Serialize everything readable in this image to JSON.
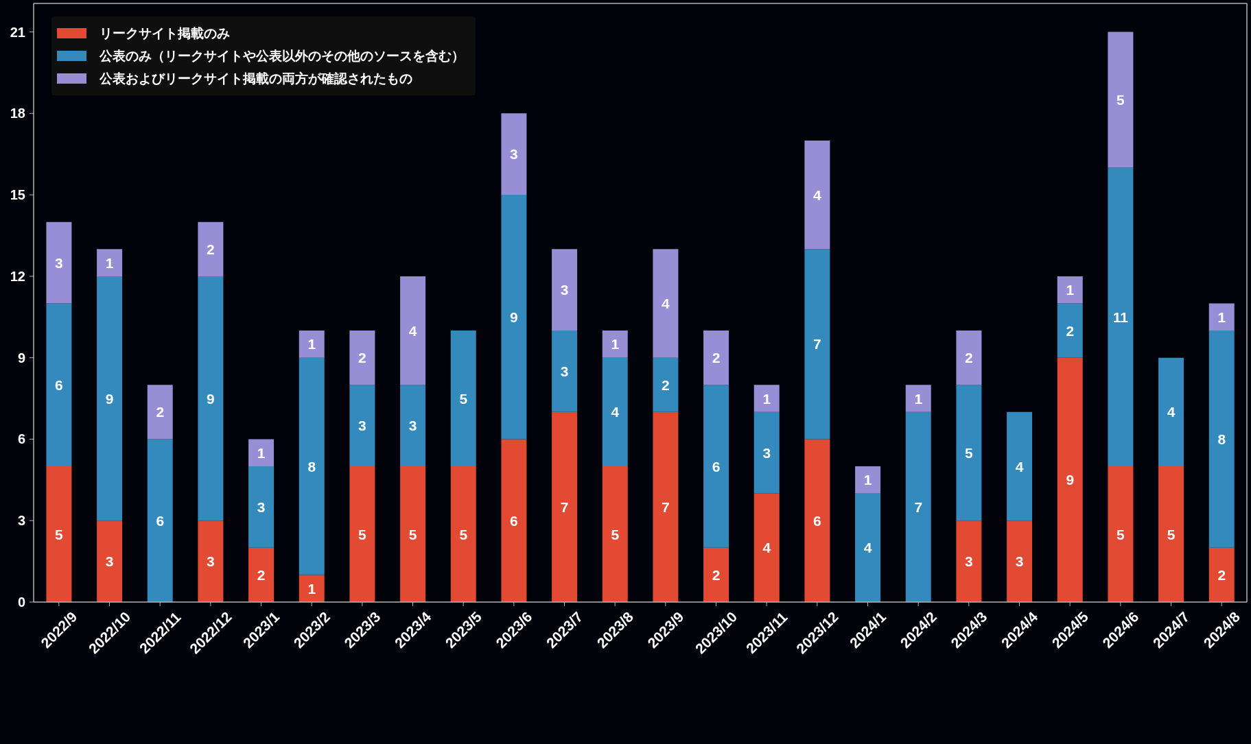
{
  "chart_data": {
    "type": "bar",
    "stacked": true,
    "categories": [
      "2022/9",
      "2022/10",
      "2022/11",
      "2022/12",
      "2023/1",
      "2023/2",
      "2023/3",
      "2023/4",
      "2023/5",
      "2023/6",
      "2023/7",
      "2023/8",
      "2023/9",
      "2023/10",
      "2023/11",
      "2023/12",
      "2024/1",
      "2024/2",
      "2024/3",
      "2024/4",
      "2024/5",
      "2024/6",
      "2024/7",
      "2024/8"
    ],
    "series": [
      {
        "name": "リークサイト掲載のみ",
        "color": "#e24a33",
        "values": [
          5,
          3,
          0,
          3,
          2,
          1,
          5,
          5,
          5,
          6,
          7,
          5,
          7,
          2,
          4,
          6,
          0,
          0,
          3,
          3,
          9,
          5,
          5,
          2
        ],
        "value_labels": [
          "5",
          "3",
          null,
          "3",
          "2",
          "1",
          "5",
          "5",
          "5",
          "6",
          "7",
          "5",
          "7",
          "2",
          "4",
          "6",
          null,
          null,
          "3",
          "3",
          "9",
          "5",
          "5",
          "2"
        ]
      },
      {
        "name": "公表のみ（リークサイトや公表以外のその他のソースを含む）",
        "color": "#348abd",
        "values": [
          6,
          9,
          6,
          9,
          3,
          8,
          3,
          3,
          5,
          9,
          3,
          4,
          2,
          6,
          3,
          7,
          4,
          7,
          5,
          4,
          2,
          11,
          4,
          8
        ],
        "value_labels": [
          "6",
          "9",
          "6",
          "9",
          "3",
          "8",
          "3",
          "3",
          "5",
          "9",
          "3",
          "4",
          "2",
          "6",
          "3",
          "7",
          "4",
          "7",
          "5",
          "4",
          "2",
          "11",
          "4",
          "8"
        ]
      },
      {
        "name": "公表およびリークサイト掲載の両方が確認されたもの",
        "color": "#988ed5",
        "values": [
          3,
          1,
          2,
          2,
          1,
          1,
          2,
          4,
          0,
          3,
          3,
          1,
          4,
          2,
          1,
          4,
          1,
          1,
          2,
          0,
          1,
          5,
          0,
          1
        ],
        "value_labels": [
          "3",
          "1",
          "2",
          "2",
          "1",
          "1",
          "2",
          "4",
          null,
          "3",
          "3",
          "1",
          "4",
          "2",
          "1",
          "4",
          "1",
          "1",
          "2",
          null,
          "1",
          "5",
          null,
          "1"
        ]
      }
    ],
    "ylim": [
      0,
      22.05
    ],
    "yticks": [
      0,
      3,
      6,
      9,
      12,
      15,
      18,
      21
    ],
    "legend": "top left",
    "grid": false
  }
}
